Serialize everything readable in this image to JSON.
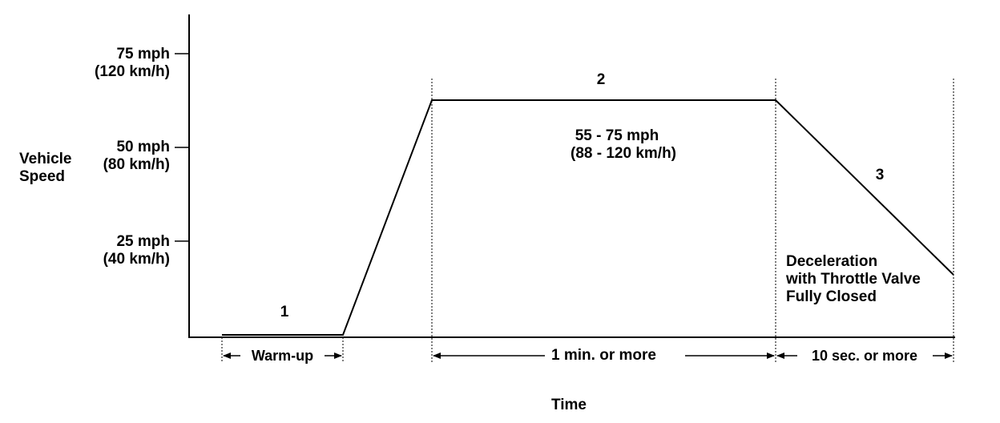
{
  "y_axis": {
    "label": [
      "Vehicle",
      "Speed"
    ],
    "ticks": [
      {
        "mph": "75 mph",
        "kmh": "(120 km/h)"
      },
      {
        "mph": "50 mph",
        "kmh": "(80 km/h)"
      },
      {
        "mph": "25 mph",
        "kmh": "(40 km/h)"
      }
    ]
  },
  "x_axis": {
    "label": "Time"
  },
  "phases": [
    {
      "number": "1",
      "duration": "Warm-up"
    },
    {
      "number": "2",
      "speed_range": [
        "55 - 75 mph",
        "(88 - 120 km/h)"
      ],
      "duration": "1 min. or  more"
    },
    {
      "number": "3",
      "description": [
        "Deceleration",
        "with Throttle Valve",
        "Fully Closed"
      ],
      "duration": "10 sec. or  more"
    }
  ]
}
